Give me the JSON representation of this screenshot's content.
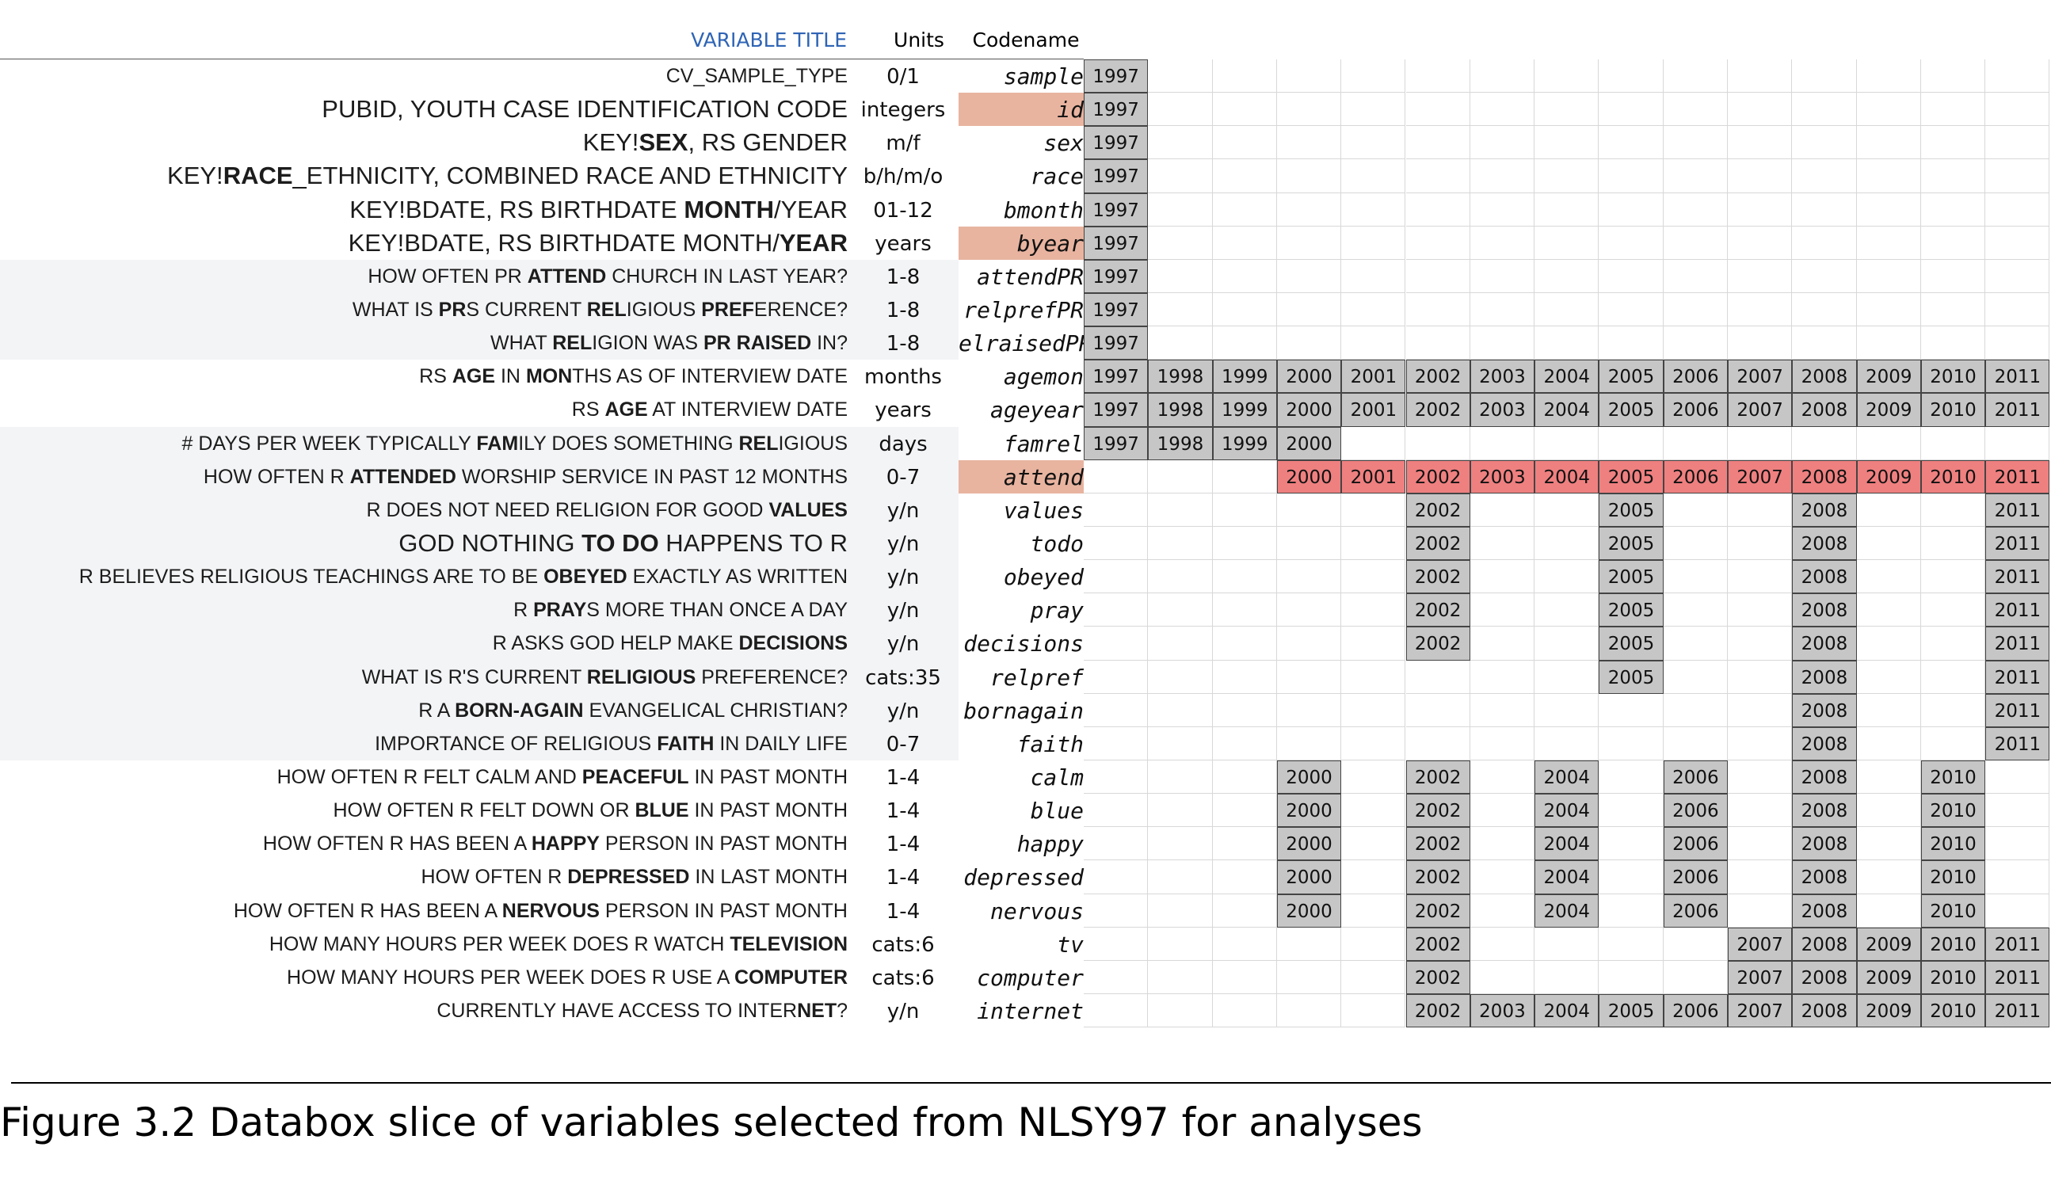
{
  "header": {
    "title": "VARIABLE TITLE",
    "units": "Units",
    "codename": "Codename"
  },
  "years": [
    "1997",
    "1998",
    "1999",
    "2000",
    "2001",
    "2002",
    "2003",
    "2004",
    "2005",
    "2006",
    "2007",
    "2008",
    "2009",
    "2010",
    "2011"
  ],
  "rows": [
    {
      "label": "CV_SAMPLE_TYPE",
      "units": "0/1",
      "code": "sample",
      "years": [
        "1997"
      ],
      "style": "plain",
      "big": false
    },
    {
      "label": "PUBID, YOUTH CASE IDENTIFICATION CODE",
      "units": "integers",
      "code": "id",
      "years": [
        "1997"
      ],
      "style": "plain",
      "big": true,
      "hl": true
    },
    {
      "label": "KEY!<b>SEX</b>, RS GENDER",
      "units": "m/f",
      "code": "sex",
      "years": [
        "1997"
      ],
      "style": "plain",
      "big": true
    },
    {
      "label": "KEY!<b>RACE</b>_ETHNICITY, COMBINED RACE AND ETHNICITY",
      "units": "b/h/m/o",
      "code": "race",
      "years": [
        "1997"
      ],
      "style": "plain",
      "big": true
    },
    {
      "label": "KEY!BDATE, RS BIRTHDATE <b>MONTH</b>/YEAR",
      "units": "01-12",
      "code": "bmonth",
      "years": [
        "1997"
      ],
      "style": "plain",
      "big": true
    },
    {
      "label": "KEY!BDATE, RS BIRTHDATE MONTH/<b>YEAR</b>",
      "units": "years",
      "code": "byear",
      "years": [
        "1997"
      ],
      "style": "plain",
      "big": true,
      "hl": true
    },
    {
      "label": "HOW OFTEN PR <b>ATTEND</b> CHURCH IN LAST YEAR?",
      "units": "1-8",
      "code": "attendPR",
      "years": [
        "1997"
      ],
      "style": "shade"
    },
    {
      "label": "WHAT IS <b>PR</b>S CURRENT <b>REL</b>IGIOUS <b>PREF</b>ERENCE?",
      "units": "1-8",
      "code": "relprefPR",
      "years": [
        "1997"
      ],
      "style": "shade"
    },
    {
      "label": "WHAT <b>REL</b>IGION WAS <b>PR RAISED</b> IN?",
      "units": "1-8",
      "code": "elraisedPR",
      "years": [
        "1997"
      ],
      "style": "shade"
    },
    {
      "label": "RS <b>AGE</b> IN <b>MON</b>THS AS OF INTERVIEW DATE",
      "units": "months",
      "code": "agemon",
      "years": [
        "1997",
        "1998",
        "1999",
        "2000",
        "2001",
        "2002",
        "2003",
        "2004",
        "2005",
        "2006",
        "2007",
        "2008",
        "2009",
        "2010",
        "2011"
      ],
      "style": "plain"
    },
    {
      "label": "RS <b>AGE</b> AT INTERVIEW DATE",
      "units": "years",
      "code": "ageyear",
      "years": [
        "1997",
        "1998",
        "1999",
        "2000",
        "2001",
        "2002",
        "2003",
        "2004",
        "2005",
        "2006",
        "2007",
        "2008",
        "2009",
        "2010",
        "2011"
      ],
      "style": "plain"
    },
    {
      "label": "# DAYS PER WEEK TYPICALLY <b>FAM</b>ILY DOES SOMETHING <b>REL</b>IGIOUS",
      "units": "days",
      "code": "famrel",
      "years": [
        "1997",
        "1998",
        "1999",
        "2000"
      ],
      "style": "shade"
    },
    {
      "label": "HOW OFTEN R <b>ATTENDED</b> WORSHIP SERVICE IN PAST 12 MONTHS",
      "units": "0-7",
      "code": "attend",
      "years": [
        "2000",
        "2001",
        "2002",
        "2003",
        "2004",
        "2005",
        "2006",
        "2007",
        "2008",
        "2009",
        "2010",
        "2011"
      ],
      "style": "shade",
      "red": true,
      "hl": true
    },
    {
      "label": "R DOES NOT NEED RELIGION FOR GOOD <b>VALUES</b>",
      "units": "y/n",
      "code": "values",
      "years": [
        "2002",
        "2005",
        "2008",
        "2011"
      ],
      "style": "shade"
    },
    {
      "label": "GOD NOTHING <b>TO DO</b> HAPPENS TO R",
      "units": "y/n",
      "code": "todo",
      "years": [
        "2002",
        "2005",
        "2008",
        "2011"
      ],
      "style": "shade",
      "big": true
    },
    {
      "label": "R BELIEVES RELIGIOUS TEACHINGS ARE TO BE <b>OBEYED</b> EXACTLY AS WRITTEN",
      "units": "y/n",
      "code": "obeyed",
      "years": [
        "2002",
        "2005",
        "2008",
        "2011"
      ],
      "style": "shade"
    },
    {
      "label": "R <b>PRAY</b>S MORE THAN ONCE A DAY",
      "units": "y/n",
      "code": "pray",
      "years": [
        "2002",
        "2005",
        "2008",
        "2011"
      ],
      "style": "shade"
    },
    {
      "label": "R ASKS GOD HELP MAKE <b>DECISIONS</b>",
      "units": "y/n",
      "code": "decisions",
      "years": [
        "2002",
        "2005",
        "2008",
        "2011"
      ],
      "style": "shade"
    },
    {
      "label": "WHAT IS R'S CURRENT <b>RELIGIOUS</b> PREFERENCE?",
      "units": "cats:35",
      "code": "relpref",
      "years": [
        "2005",
        "2008",
        "2011"
      ],
      "style": "shade"
    },
    {
      "label": "R A <b>BORN-AGAIN</b> EVANGELICAL CHRISTIAN?",
      "units": "y/n",
      "code": "bornagain",
      "years": [
        "2008",
        "2011"
      ],
      "style": "shade"
    },
    {
      "label": "IMPORTANCE OF RELIGIOUS <b>FAITH</b> IN DAILY LIFE",
      "units": "0-7",
      "code": "faith",
      "years": [
        "2008",
        "2011"
      ],
      "style": "shade"
    },
    {
      "label": "HOW OFTEN R FELT CALM AND <b>PEACEFUL</b> IN PAST MONTH",
      "units": "1-4",
      "code": "calm",
      "years": [
        "2000",
        "2002",
        "2004",
        "2006",
        "2008",
        "2010"
      ],
      "style": "plain"
    },
    {
      "label": "HOW OFTEN R FELT DOWN OR <b>BLUE</b> IN PAST MONTH",
      "units": "1-4",
      "code": "blue",
      "years": [
        "2000",
        "2002",
        "2004",
        "2006",
        "2008",
        "2010"
      ],
      "style": "plain"
    },
    {
      "label": "HOW OFTEN R HAS BEEN A <b>HAPPY</b> PERSON IN PAST MONTH",
      "units": "1-4",
      "code": "happy",
      "years": [
        "2000",
        "2002",
        "2004",
        "2006",
        "2008",
        "2010"
      ],
      "style": "plain"
    },
    {
      "label": "HOW OFTEN R <b>DEPRESSED</b> IN LAST MONTH",
      "units": "1-4",
      "code": "depressed",
      "years": [
        "2000",
        "2002",
        "2004",
        "2006",
        "2008",
        "2010"
      ],
      "style": "plain"
    },
    {
      "label": "HOW OFTEN R HAS BEEN A <b>NERVOUS</b> PERSON IN PAST MONTH",
      "units": "1-4",
      "code": "nervous",
      "years": [
        "2000",
        "2002",
        "2004",
        "2006",
        "2008",
        "2010"
      ],
      "style": "plain"
    },
    {
      "label": "HOW MANY HOURS PER WEEK DOES R WATCH <b>TELEVISION</b>",
      "units": "cats:6",
      "code": "tv",
      "years": [
        "2002",
        "2007",
        "2008",
        "2009",
        "2010",
        "2011"
      ],
      "style": "plain"
    },
    {
      "label": "HOW MANY HOURS PER WEEK DOES R USE A <b>COMPUTER</b>",
      "units": "cats:6",
      "code": "computer",
      "years": [
        "2002",
        "2007",
        "2008",
        "2009",
        "2010",
        "2011"
      ],
      "style": "plain"
    },
    {
      "label": "CURRENTLY HAVE ACCESS TO INTER<b>NET</b>?",
      "units": "y/n",
      "code": "internet",
      "years": [
        "2002",
        "2003",
        "2004",
        "2005",
        "2006",
        "2007",
        "2008",
        "2009",
        "2010",
        "2011"
      ],
      "style": "plain"
    }
  ],
  "caption": "Figure 3.2 Databox slice of variables selected from NLSY97 for analyses",
  "colors": {
    "title": "#2f64b5",
    "highlight": "#e8b4a0",
    "gray_cell": "#c6c6c6",
    "red_cell": "#ef8080",
    "shade": "#f3f4f6"
  }
}
